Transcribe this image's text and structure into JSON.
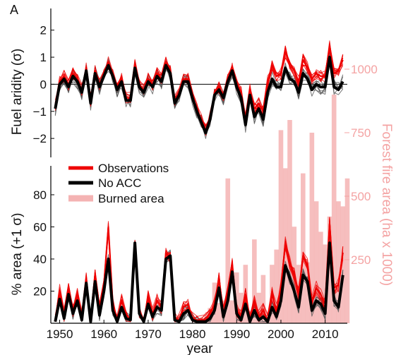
{
  "chart_data": {
    "type": "line",
    "panel_label": "A",
    "x_axis": {
      "label": "year",
      "range": [
        1948,
        2015
      ],
      "ticks": [
        1950,
        1960,
        1970,
        1980,
        1990,
        2000,
        2010
      ]
    },
    "legend": {
      "placement": "center-left",
      "entries": [
        {
          "label": "Observations",
          "color": "#ee0000"
        },
        {
          "label": "No ACC",
          "color": "#000000"
        },
        {
          "label": "Burned area",
          "color": "#f4b3b3"
        }
      ]
    },
    "colors": {
      "observations": "#ee0000",
      "no_acc": "#000000",
      "ensemble_gray": "#555555",
      "burned_area": "#f4b3b3",
      "right_axis": "#f4a3a3"
    },
    "top_panel": {
      "ylabel": "Fuel aridity (σ)",
      "ylim": [
        -2.7,
        2.8
      ],
      "yticks": [
        -2,
        -1,
        0,
        1,
        2
      ],
      "zero_line": true,
      "observations": [
        -0.8,
        0.1,
        0.3,
        0.0,
        0.4,
        0.2,
        -0.2,
        0.6,
        -0.6,
        0.5,
        0.0,
        0.4,
        0.8,
        0.4,
        -0.1,
        0.2,
        -0.5,
        -0.5,
        0.7,
        0.0,
        -0.2,
        0.2,
        0.0,
        0.4,
        0.2,
        0.8,
        0.5,
        -0.6,
        -0.3,
        0.2,
        0.2,
        -0.4,
        -0.9,
        -1.3,
        -1.7,
        -1.2,
        -0.3,
        -0.1,
        -0.4,
        0.2,
        0.6,
        0.0,
        -0.3,
        -1.3,
        -0.2,
        -0.9,
        -0.7,
        -1.0,
        0.1,
        0.7,
        0.3,
        0.4,
        1.2,
        0.8,
        0.5,
        0.1,
        0.9,
        0.6,
        0.2,
        0.4,
        0.3,
        0.3,
        1.4,
        0.4,
        0.5,
        0.9
      ],
      "no_acc": [
        -0.9,
        0.0,
        0.2,
        -0.1,
        0.3,
        0.1,
        -0.3,
        0.5,
        -0.7,
        0.4,
        -0.1,
        0.3,
        0.7,
        0.3,
        -0.2,
        0.1,
        -0.6,
        -0.6,
        0.6,
        -0.1,
        -0.3,
        0.1,
        -0.1,
        0.3,
        0.1,
        0.7,
        0.4,
        -0.7,
        -0.4,
        0.1,
        0.1,
        -0.5,
        -1.0,
        -1.4,
        -1.8,
        -1.3,
        -0.4,
        -0.2,
        -0.5,
        0.1,
        0.5,
        -0.1,
        -0.5,
        -1.5,
        -0.4,
        -1.2,
        -0.9,
        -1.3,
        -0.3,
        0.2,
        -0.1,
        -0.1,
        0.6,
        0.2,
        0.1,
        -0.3,
        0.4,
        0.2,
        -0.2,
        0.0,
        -0.1,
        -0.1,
        1.0,
        -0.1,
        -0.2,
        0.1
      ]
    },
    "bottom_panel": {
      "ylabel": "% area (+1 σ)",
      "ylim": [
        0,
        98
      ],
      "yticks": [
        20,
        40,
        60,
        80
      ],
      "observations": [
        2,
        20,
        5,
        22,
        8,
        18,
        4,
        28,
        2,
        30,
        8,
        24,
        60,
        12,
        2,
        14,
        5,
        3,
        48,
        8,
        2,
        16,
        6,
        14,
        10,
        44,
        40,
        3,
        2,
        10,
        12,
        3,
        2,
        2,
        2,
        6,
        12,
        28,
        6,
        20,
        36,
        8,
        4,
        18,
        2,
        14,
        4,
        8,
        2,
        18,
        8,
        22,
        50,
        38,
        30,
        18,
        42,
        36,
        14,
        22,
        18,
        12,
        62,
        22,
        24,
        44
      ],
      "no_acc": [
        1,
        15,
        3,
        18,
        6,
        14,
        2,
        25,
        1,
        26,
        5,
        20,
        40,
        8,
        1,
        10,
        3,
        2,
        50,
        6,
        1,
        12,
        4,
        10,
        8,
        40,
        42,
        2,
        1,
        6,
        8,
        2,
        1,
        1,
        1,
        3,
        8,
        22,
        4,
        14,
        32,
        6,
        2,
        12,
        1,
        8,
        2,
        4,
        1,
        10,
        4,
        14,
        36,
        28,
        20,
        10,
        30,
        26,
        8,
        14,
        12,
        6,
        50,
        14,
        10,
        30
      ]
    },
    "burned_area": {
      "right_axis_label": "Forest fire area (ha x 1000)",
      "right_ticks": [
        250,
        500,
        750,
        1000
      ],
      "right_lim": [
        0,
        1050
      ],
      "years": [
        1984,
        1985,
        1986,
        1987,
        1988,
        1989,
        1990,
        1991,
        1992,
        1993,
        1994,
        1995,
        1996,
        1997,
        1998,
        1999,
        2000,
        2001,
        2002,
        2003,
        2004,
        2005,
        2006,
        2007,
        2008,
        2009,
        2010,
        2011,
        2012,
        2013,
        2014,
        2015
      ],
      "values": [
        60,
        160,
        80,
        90,
        570,
        90,
        200,
        120,
        230,
        50,
        330,
        120,
        190,
        20,
        230,
        290,
        760,
        610,
        800,
        380,
        230,
        590,
        240,
        750,
        480,
        360,
        310,
        420,
        900,
        480,
        460,
        570
      ]
    }
  }
}
